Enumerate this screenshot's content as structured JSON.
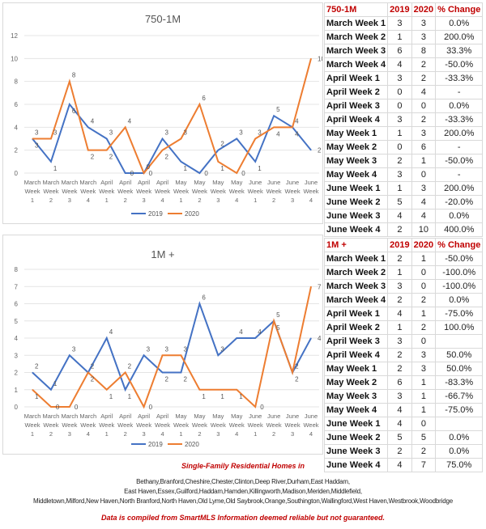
{
  "chart_data": [
    {
      "type": "line",
      "title": "750-1M",
      "ylim": [
        0,
        12
      ],
      "yticks": [
        0,
        2,
        4,
        6,
        8,
        10,
        12
      ],
      "grid": true,
      "legend": "bottom",
      "categories": [
        [
          "March",
          "Week",
          "1"
        ],
        [
          "March",
          "Week",
          "2"
        ],
        [
          "March",
          "Week",
          "3"
        ],
        [
          "March",
          "Week",
          "4"
        ],
        [
          "April",
          "Week",
          "1"
        ],
        [
          "April",
          "Week",
          "2"
        ],
        [
          "April",
          "Week",
          "3"
        ],
        [
          "April",
          "Week",
          "4"
        ],
        [
          "May",
          "Week",
          "1"
        ],
        [
          "May",
          "Week",
          "2"
        ],
        [
          "May",
          "Week",
          "3"
        ],
        [
          "May",
          "Week",
          "4"
        ],
        [
          "June",
          "Week",
          "1"
        ],
        [
          "June",
          "Week",
          "2"
        ],
        [
          "June",
          "Week",
          "3"
        ],
        [
          "June",
          "Week",
          "4"
        ]
      ],
      "series": [
        {
          "name": "2019",
          "color": "#4472c4",
          "values": [
            3,
            1,
            6,
            4,
            3,
            0,
            0,
            3,
            1,
            0,
            2,
            3,
            1,
            5,
            4,
            2
          ]
        },
        {
          "name": "2020",
          "color": "#ed7d31",
          "values": [
            3,
            3,
            8,
            2,
            2,
            4,
            0,
            2,
            3,
            6,
            1,
            0,
            3,
            4,
            4,
            10
          ]
        }
      ]
    },
    {
      "type": "line",
      "title": "1M +",
      "ylim": [
        0,
        8
      ],
      "yticks": [
        0,
        1,
        2,
        3,
        4,
        5,
        6,
        7,
        8
      ],
      "grid": true,
      "legend": "bottom",
      "categories": [
        [
          "March",
          "Week",
          "1"
        ],
        [
          "March",
          "Week",
          "2"
        ],
        [
          "March",
          "Week",
          "3"
        ],
        [
          "March",
          "Week",
          "4"
        ],
        [
          "April",
          "Week",
          "1"
        ],
        [
          "April",
          "Week",
          "2"
        ],
        [
          "April",
          "Week",
          "3"
        ],
        [
          "April",
          "Week",
          "4"
        ],
        [
          "May",
          "Week",
          "1"
        ],
        [
          "May",
          "Week",
          "2"
        ],
        [
          "May",
          "Week",
          "3"
        ],
        [
          "May",
          "Week",
          "4"
        ],
        [
          "June",
          "Week",
          "1"
        ],
        [
          "June",
          "Week",
          "2"
        ],
        [
          "June",
          "Week",
          "3"
        ],
        [
          "June",
          "Week",
          "4"
        ]
      ],
      "series": [
        {
          "name": "2019",
          "color": "#4472c4",
          "values": [
            2,
            1,
            3,
            2,
            4,
            1,
            3,
            2,
            2,
            6,
            3,
            4,
            4,
            5,
            2,
            4
          ]
        },
        {
          "name": "2020",
          "color": "#ed7d31",
          "values": [
            1,
            0,
            0,
            2,
            1,
            2,
            0,
            3,
            3,
            1,
            1,
            1,
            0,
            5,
            2,
            7
          ]
        }
      ]
    }
  ],
  "tables": [
    {
      "headers": [
        "750-1M",
        "2019",
        "2020",
        "% Change"
      ],
      "rows": [
        [
          "March Week 1",
          "3",
          "3",
          "0.0%"
        ],
        [
          "March Week 2",
          "1",
          "3",
          "200.0%"
        ],
        [
          "March Week 3",
          "6",
          "8",
          "33.3%"
        ],
        [
          "March Week 4",
          "4",
          "2",
          "-50.0%"
        ],
        [
          "April Week 1",
          "3",
          "2",
          "-33.3%"
        ],
        [
          "April Week 2",
          "0",
          "4",
          "-"
        ],
        [
          "April Week 3",
          "0",
          "0",
          "0.0%"
        ],
        [
          "April Week 4",
          "3",
          "2",
          "-33.3%"
        ],
        [
          "May Week 1",
          "1",
          "3",
          "200.0%"
        ],
        [
          "May Week 2",
          "0",
          "6",
          "-"
        ],
        [
          "May Week 3",
          "2",
          "1",
          "-50.0%"
        ],
        [
          "May Week 4",
          "3",
          "0",
          "-"
        ],
        [
          "June Week 1",
          "1",
          "3",
          "200.0%"
        ],
        [
          "June Week 2",
          "5",
          "4",
          "-20.0%"
        ],
        [
          "June Week 3",
          "4",
          "4",
          "0.0%"
        ],
        [
          "June Week 4",
          "2",
          "10",
          "400.0%"
        ]
      ]
    },
    {
      "headers": [
        "1M +",
        "2019",
        "2020",
        "% Change"
      ],
      "rows": [
        [
          "March Week 1",
          "2",
          "1",
          "-50.0%"
        ],
        [
          "March Week 2",
          "1",
          "0",
          "-100.0%"
        ],
        [
          "March Week 3",
          "3",
          "0",
          "-100.0%"
        ],
        [
          "March Week 4",
          "2",
          "2",
          "0.0%"
        ],
        [
          "April Week 1",
          "4",
          "1",
          "-75.0%"
        ],
        [
          "April Week 2",
          "1",
          "2",
          "100.0%"
        ],
        [
          "April Week 3",
          "3",
          "0",
          ""
        ],
        [
          "April Week 4",
          "2",
          "3",
          "50.0%"
        ],
        [
          "May Week 1",
          "2",
          "3",
          "50.0%"
        ],
        [
          "May Week 2",
          "6",
          "1",
          "-83.3%"
        ],
        [
          "May Week 3",
          "3",
          "1",
          "-66.7%"
        ],
        [
          "May Week 4",
          "4",
          "1",
          "-75.0%"
        ],
        [
          "June Week 1",
          "4",
          "0",
          ""
        ],
        [
          "June Week 2",
          "5",
          "5",
          "0.0%"
        ],
        [
          "June Week 3",
          "2",
          "2",
          "0.0%"
        ],
        [
          "June Week 4",
          "4",
          "7",
          "75.0%"
        ]
      ]
    }
  ],
  "footer": {
    "heading": "Single-Family Residential Homes in",
    "towns": [
      "Bethany,Branford,Cheshire,Chester,Clinton,Deep River,Durham,East Haddam,",
      "East Haven,Essex,Guilford,Haddam,Hamden,Killingworth,Madison,Meriden,Middlefield,",
      "Middletown,Milford,New Haven,North Branford,North Haven,Old Lyme,Old Saybrook,Orange,Southington,Wallingford,West Haven,Westbrook,Woodbridge"
    ],
    "disclaimer": "Data is compiled from SmartMLS Information deemed reliable but not guaranteed."
  }
}
